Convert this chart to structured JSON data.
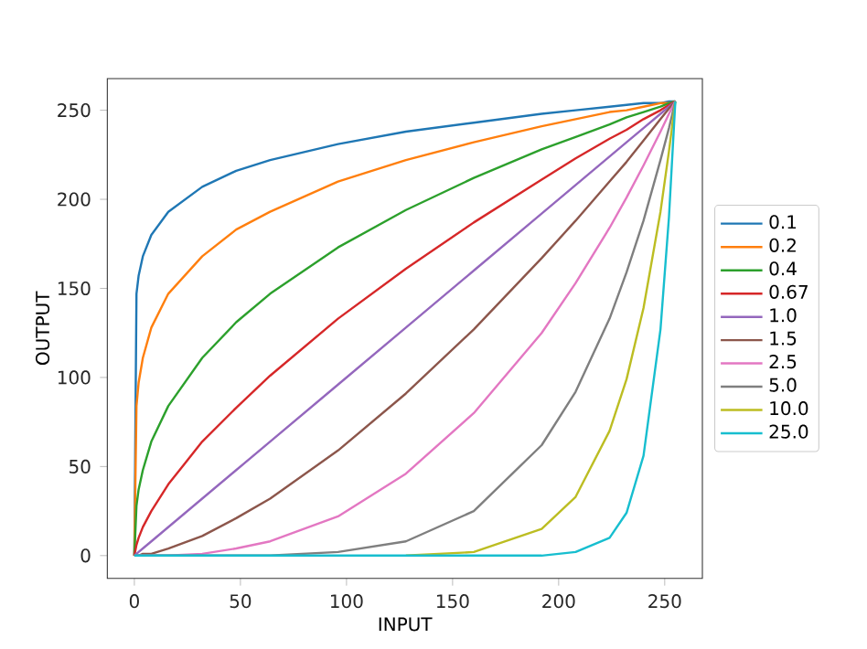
{
  "chart_data": {
    "type": "line",
    "xlabel": "INPUT",
    "ylabel": "OUTPUT",
    "x": [
      0,
      1,
      2,
      4,
      8,
      16,
      32,
      48,
      64,
      96,
      128,
      160,
      192,
      208,
      224,
      232,
      240,
      248,
      252,
      255
    ],
    "xlim": [
      -12.75,
      267.75
    ],
    "ylim": [
      -12.75,
      267.75
    ],
    "xticks": [
      0,
      50,
      100,
      150,
      200,
      250
    ],
    "yticks": [
      0,
      50,
      100,
      150,
      200,
      250
    ],
    "legend": "right",
    "grid": false,
    "marker": "none",
    "line_style": "solid",
    "series": [
      {
        "name": "0.1",
        "color": "#1f77b4",
        "values": [
          0,
          147,
          157,
          168,
          180,
          193,
          207,
          216,
          222,
          231,
          238,
          243,
          248,
          250,
          252,
          253,
          254,
          254,
          255,
          255
        ]
      },
      {
        "name": "0.2",
        "color": "#ff7f0e",
        "values": [
          0,
          84,
          97,
          111,
          128,
          147,
          168,
          183,
          193,
          210,
          222,
          232,
          241,
          245,
          249,
          250,
          252,
          254,
          254,
          255
        ]
      },
      {
        "name": "0.4",
        "color": "#2ca02c",
        "values": [
          0,
          28,
          37,
          48,
          64,
          84,
          111,
          131,
          147,
          173,
          194,
          212,
          228,
          235,
          242,
          246,
          249,
          252,
          254,
          255
        ]
      },
      {
        "name": "0.67",
        "color": "#d62728",
        "values": [
          0,
          6,
          10,
          16,
          25,
          40,
          64,
          83,
          101,
          133,
          161,
          187,
          211,
          223,
          234,
          239,
          245,
          250,
          253,
          255
        ]
      },
      {
        "name": "1.0",
        "color": "#9467bd",
        "values": [
          0,
          1,
          2,
          4,
          8,
          16,
          32,
          48,
          64,
          96,
          128,
          160,
          192,
          208,
          224,
          232,
          240,
          248,
          252,
          255
        ]
      },
      {
        "name": "1.5",
        "color": "#8c564b",
        "values": [
          0,
          0,
          0,
          1,
          1,
          4,
          11,
          21,
          32,
          59,
          91,
          127,
          167,
          188,
          210,
          221,
          233,
          245,
          251,
          255
        ]
      },
      {
        "name": "2.5",
        "color": "#e377c2",
        "values": [
          0,
          0,
          0,
          0,
          0,
          0,
          1,
          4,
          8,
          22,
          46,
          80,
          125,
          153,
          184,
          201,
          219,
          238,
          248,
          255
        ]
      },
      {
        "name": "5.0",
        "color": "#7f7f7f",
        "values": [
          0,
          0,
          0,
          0,
          0,
          0,
          0,
          0,
          0,
          2,
          8,
          25,
          62,
          92,
          133,
          159,
          188,
          222,
          240,
          255
        ]
      },
      {
        "name": "10.0",
        "color": "#bcbd22",
        "values": [
          null,
          null,
          null,
          null,
          null,
          null,
          null,
          null,
          null,
          null,
          0,
          2,
          15,
          33,
          70,
          99,
          139,
          193,
          227,
          255
        ]
      },
      {
        "name": "25.0",
        "color": "#17becf",
        "values": [
          0,
          0,
          0,
          0,
          0,
          0,
          0,
          0,
          0,
          0,
          0,
          0,
          0,
          2,
          10,
          24,
          56,
          127,
          190,
          255
        ]
      }
    ]
  }
}
